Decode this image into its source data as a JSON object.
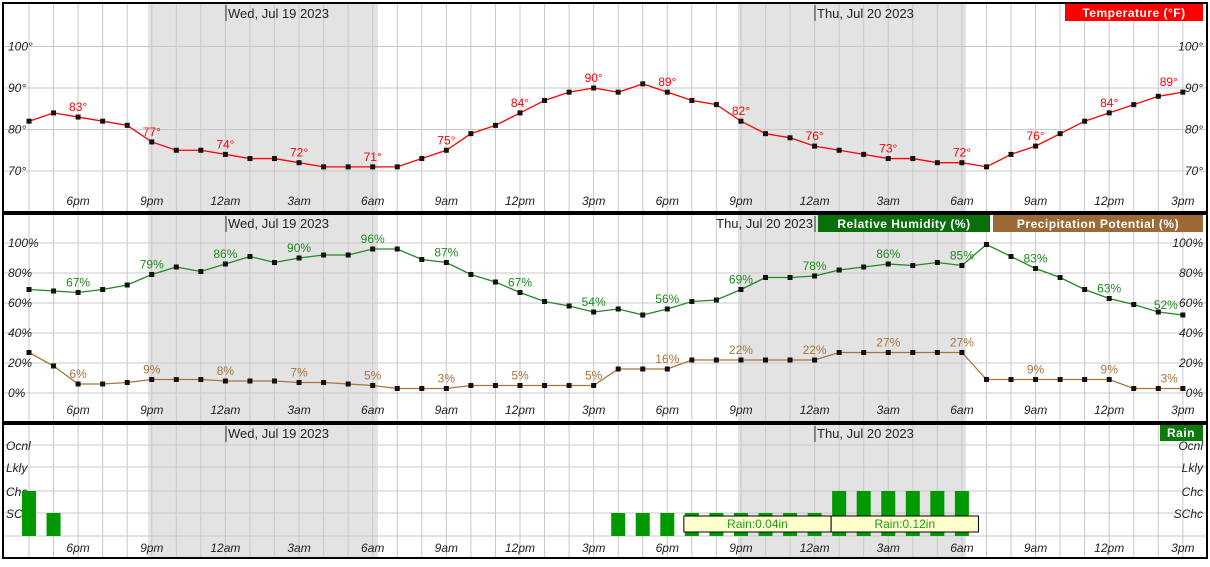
{
  "colors": {
    "temperature": "#ff0000",
    "humidity": "#1e8a1e",
    "precip": "#a8743c",
    "rain_bar": "#009900",
    "night": "#e3e3e3",
    "rain_box": "#ffffcc"
  },
  "hour_labels": [
    "6pm",
    "9pm",
    "12am",
    "3am",
    "6am",
    "9am",
    "12pm",
    "3pm",
    "6pm",
    "9pm",
    "12am",
    "3am",
    "6am",
    "9am",
    "12pm",
    "3pm"
  ],
  "dates": [
    "Wed, Jul 19 2023",
    "Thu, Jul 20 2023"
  ],
  "chart_data": [
    {
      "type": "line",
      "legend": "Temperature (°F)",
      "x_start": "4pm",
      "x_step": "1 hour",
      "y_ticks": [
        "100°",
        "90°",
        "80°",
        "70°"
      ],
      "ylim": [
        60,
        105
      ],
      "grid": true,
      "series": [
        {
          "name": "Temperature (°F)",
          "values": [
            82,
            84,
            83,
            82,
            81,
            77,
            75,
            75,
            74,
            73,
            73,
            72,
            71,
            71,
            71,
            71,
            73,
            75,
            79,
            81,
            84,
            87,
            89,
            90,
            89,
            91,
            89,
            87,
            86,
            82,
            79,
            78,
            76,
            75,
            74,
            73,
            73,
            72,
            72,
            71,
            74,
            76,
            79,
            82,
            84,
            86,
            88,
            89
          ],
          "labels": [
            "83°",
            "77°",
            "74°",
            "72°",
            "71°",
            "75°",
            "84°",
            "90°",
            "89°",
            "82°",
            "76°",
            "73°",
            "72°",
            "76°",
            "84°",
            "89°"
          ]
        }
      ]
    },
    {
      "type": "line",
      "y_ticks": [
        "100%",
        "80%",
        "60%",
        "40%",
        "20%",
        "0%"
      ],
      "ylim": [
        -10,
        110
      ],
      "grid": true,
      "series": [
        {
          "name": "Relative Humidity (%)",
          "values": [
            69,
            68,
            67,
            69,
            72,
            79,
            84,
            81,
            86,
            91,
            87,
            90,
            92,
            92,
            96,
            96,
            89,
            87,
            79,
            74,
            67,
            61,
            58,
            54,
            56,
            52,
            56,
            61,
            62,
            69,
            77,
            77,
            78,
            82,
            84,
            86,
            85,
            87,
            85,
            99,
            91,
            83,
            77,
            69,
            63,
            59,
            54,
            52
          ],
          "labels": [
            "67%",
            "79%",
            "86%",
            "90%",
            "96%",
            "87%",
            "67%",
            "54%",
            "56%",
            "69%",
            "78%",
            "86%",
            "85%",
            "83%",
            "63%",
            "52%"
          ]
        },
        {
          "name": "Precipitation Potential (%)",
          "values": [
            27,
            18,
            6,
            6,
            7,
            9,
            9,
            9,
            8,
            8,
            8,
            7,
            7,
            6,
            5,
            3,
            3,
            3,
            5,
            5,
            5,
            5,
            5,
            5,
            16,
            16,
            16,
            22,
            22,
            22,
            22,
            22,
            22,
            27,
            27,
            27,
            27,
            27,
            27,
            9,
            9,
            9,
            9,
            9,
            9,
            3,
            3,
            3
          ],
          "labels": [
            "6%",
            "9%",
            "8%",
            "7%",
            "5%",
            "3%",
            "5%",
            "5%",
            "16%",
            "22%",
            "22%",
            "27%",
            "27%",
            "9%",
            "9%",
            "3%"
          ]
        }
      ]
    },
    {
      "type": "bar",
      "legend": "Rain",
      "levels": [
        "Ocnl",
        "Lkly",
        "Chc",
        "SChc"
      ],
      "values": [
        "Chc",
        "SChc",
        "",
        "",
        "",
        "",
        "",
        "",
        "",
        "",
        "",
        "",
        "",
        "",
        "",
        "",
        "",
        "",
        "",
        "",
        "",
        "",
        "",
        "",
        "SChc",
        "SChc",
        "SChc",
        "SChc",
        "SChc",
        "SChc",
        "SChc",
        "SChc",
        "SChc",
        "Chc",
        "Chc",
        "Chc",
        "Chc",
        "Chc",
        "Chc",
        "",
        "",
        "",
        "",
        "",
        "",
        "",
        "",
        ""
      ],
      "amounts": [
        {
          "label": "Rain:0.04in",
          "from_hour_index": 27,
          "to_hour_index": 33
        },
        {
          "label": "Rain:0.12in",
          "from_hour_index": 33,
          "to_hour_index": 39
        }
      ]
    }
  ]
}
